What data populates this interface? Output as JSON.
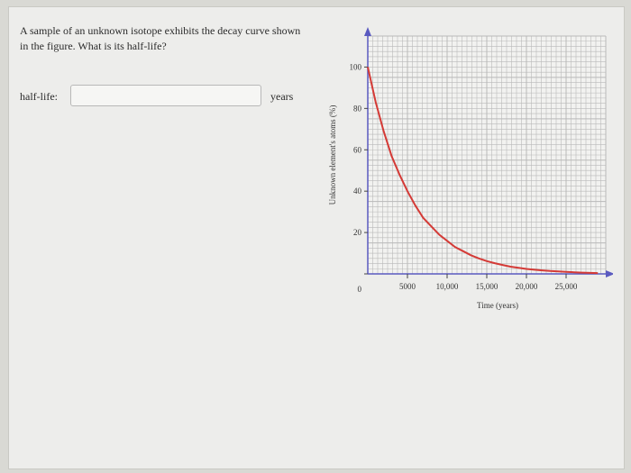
{
  "question": {
    "text": "A sample of an unknown isotope exhibits the decay curve shown in the figure. What is its half-life?"
  },
  "answer": {
    "label": "half-life:",
    "value": "",
    "placeholder": "",
    "unit": "years"
  },
  "chart_data": {
    "type": "line",
    "xlabel": "Time (years)",
    "ylabel": "Unknown element's atoms (%)",
    "x_ticks": [
      0,
      5000,
      10000,
      15000,
      20000,
      25000
    ],
    "x_tick_labels": [
      "5000",
      "10,000",
      "15,000",
      "20,000",
      "25,000"
    ],
    "y_ticks": [
      0,
      20,
      40,
      60,
      80,
      100
    ],
    "y_tick_labels": [
      "0",
      "20",
      "40",
      "60",
      "80",
      "100"
    ],
    "xlim": [
      0,
      30000
    ],
    "ylim": [
      0,
      115
    ],
    "grid": true,
    "series": [
      {
        "color": "#d43a36",
        "x": [
          0,
          1000,
          2000,
          3000,
          4000,
          5000,
          6000,
          7000,
          8000,
          9000,
          10000,
          11000,
          12000,
          13000,
          14000,
          15000,
          16000,
          17000,
          18000,
          19000,
          20000,
          21000,
          22000,
          23000,
          24000,
          25000,
          26000,
          27000,
          28000,
          29000
        ],
        "y": [
          100,
          83,
          69,
          57,
          48,
          40,
          33,
          27,
          23,
          19,
          16,
          13,
          11,
          9,
          7.5,
          6.2,
          5.2,
          4.3,
          3.5,
          2.9,
          2.4,
          2,
          1.7,
          1.4,
          1.2,
          1,
          0.8,
          0.6,
          0.5,
          0.4
        ]
      }
    ],
    "grid_color": "#b9b9b9",
    "axis_color": "#5a5ac0",
    "plot_background": "#f2f2f0"
  }
}
